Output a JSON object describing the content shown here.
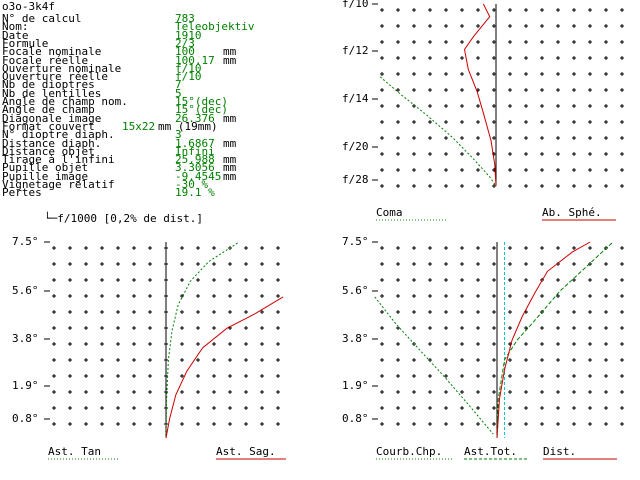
{
  "window_title": "o3o-3k4f",
  "specs": [
    {
      "label": "N° de calcul",
      "value": "783",
      "unit": ""
    },
    {
      "label": "Nom:",
      "value": "Teleobjektiv",
      "unit": ""
    },
    {
      "label": "Date",
      "value": "1910",
      "unit": ""
    },
    {
      "label": "Formule",
      "value": "2/3",
      "unit": ""
    },
    {
      "label": "Focale nominale",
      "value": "100",
      "unit": "mm"
    },
    {
      "label": "Focale réelle",
      "value": "100.17",
      "unit": "mm"
    },
    {
      "label": "Ouverture nominale",
      "value": "f/10",
      "unit": ""
    },
    {
      "label": "Ouverture réelle",
      "value": "f/10",
      "unit": ""
    },
    {
      "label": "Nb de dioptres",
      "value": "7",
      "unit": ""
    },
    {
      "label": "Nb de lentilles",
      "value": "5",
      "unit": ""
    },
    {
      "label": "Angle de champ nom.",
      "value": "15°(dec)",
      "unit": ""
    },
    {
      "label": "Angle de champ",
      "value": "15°(dec)",
      "unit": ""
    },
    {
      "label": "Diagonale image",
      "value": "26.376",
      "unit": "mm"
    },
    {
      "label": "Format couvert",
      "value": "15x22",
      "unit": "mm (19mm)"
    },
    {
      "label": "N° dioptre diaph.",
      "value": "3",
      "unit": ""
    },
    {
      "label": "Distance diaph.",
      "value": "1.6867",
      "unit": "mm"
    },
    {
      "label": "Distance objet",
      "value": "Infini",
      "unit": ""
    },
    {
      "label": "Tirage à l'infini",
      "value": "25.988",
      "unit": "mm"
    },
    {
      "label": "Pupille objet",
      "value": "3.3056",
      "unit": "mm"
    },
    {
      "label": "Pupille image",
      "value": "-9.4545",
      "unit": "mm"
    },
    {
      "label": "Vignetage relatif",
      "value": "-30 %",
      "unit": ""
    },
    {
      "label": "Pertes",
      "value": "19.1 %",
      "unit": ""
    }
  ],
  "distortion_note": "f/1000 [0,2% de dist.]",
  "colors": {
    "green": "#008000",
    "red": "#cc0000",
    "cyan": "#00c0c0",
    "text": "#000000",
    "background": "#ffffff"
  },
  "chart_data": [
    {
      "type": "line",
      "name": "spherical",
      "y_ticks": [
        "f/10",
        "f/12",
        "f/14",
        "f/20",
        "f/28"
      ],
      "series": [
        {
          "name": "Coma",
          "color": "green",
          "style": "dotted",
          "points": [
            [
              -0.92,
              0.6
            ],
            [
              -0.75,
              0.5
            ],
            [
              -0.55,
              0.39
            ],
            [
              -0.35,
              0.27
            ],
            [
              -0.18,
              0.15
            ],
            [
              -0.05,
              0.05
            ],
            [
              0,
              0
            ]
          ]
        },
        {
          "name": "Ab. Sphé.",
          "color": "red",
          "style": "solid",
          "points": [
            [
              -0.1,
              1.0
            ],
            [
              -0.05,
              0.93
            ],
            [
              -0.18,
              0.82
            ],
            [
              -0.25,
              0.75
            ],
            [
              -0.22,
              0.64
            ],
            [
              -0.15,
              0.52
            ],
            [
              -0.1,
              0.4
            ],
            [
              -0.04,
              0.25
            ],
            [
              -0.01,
              0.12
            ],
            [
              0,
              0
            ]
          ]
        }
      ]
    },
    {
      "type": "line",
      "name": "astigmatism-left",
      "y_ticks": [
        "7.5°",
        "5.6°",
        "3.8°",
        "1.9°",
        "0.8°"
      ],
      "series": [
        {
          "name": "Ast. Tan",
          "color": "green",
          "style": "dotted",
          "points": [
            [
              0,
              0
            ],
            [
              0.005,
              0.2
            ],
            [
              0.02,
              0.4
            ],
            [
              0.05,
              0.55
            ],
            [
              0.1,
              0.68
            ],
            [
              0.2,
              0.8
            ],
            [
              0.35,
              0.9
            ],
            [
              0.6,
              1.0
            ]
          ]
        },
        {
          "name": "Ast. Sag.",
          "color": "red",
          "style": "solid",
          "points": [
            [
              0,
              0
            ],
            [
              0.03,
              0.1
            ],
            [
              0.08,
              0.22
            ],
            [
              0.17,
              0.34
            ],
            [
              0.3,
              0.46
            ],
            [
              0.5,
              0.56
            ],
            [
              0.72,
              0.63
            ],
            [
              0.96,
              0.72
            ]
          ]
        }
      ]
    },
    {
      "type": "line",
      "name": "astigmatism-right",
      "y_ticks": [
        "7.5°",
        "5.6°",
        "3.8°",
        "1.9°",
        "0.8°"
      ],
      "series": [
        {
          "name": "Courb.Chp.",
          "color": "green",
          "style": "dotted",
          "points": [
            [
              -0.97,
              0.72
            ],
            [
              -0.8,
              0.58
            ],
            [
              -0.6,
              0.44
            ],
            [
              -0.4,
              0.3
            ],
            [
              -0.2,
              0.15
            ],
            [
              -0.03,
              0.02
            ]
          ]
        },
        {
          "name": "Ast.Tot.",
          "color": "green",
          "style": "dashed",
          "points": [
            [
              0,
              0
            ],
            [
              0.01,
              0.2
            ],
            [
              0.06,
              0.4
            ],
            [
              0.16,
              0.5
            ],
            [
              0.3,
              0.6
            ],
            [
              0.5,
              0.75
            ],
            [
              0.72,
              0.88
            ],
            [
              0.92,
              1.0
            ]
          ]
        },
        {
          "name": "Dist.",
          "color": "red",
          "style": "solid",
          "points": [
            [
              0,
              0
            ],
            [
              0.02,
              0.2
            ],
            [
              0.06,
              0.35
            ],
            [
              0.12,
              0.5
            ],
            [
              0.2,
              0.62
            ],
            [
              0.3,
              0.74
            ],
            [
              0.4,
              0.85
            ],
            [
              0.6,
              0.95
            ],
            [
              0.74,
              1.0
            ]
          ]
        }
      ],
      "reference_line": {
        "x": 0.06,
        "color": "cyan"
      }
    }
  ]
}
